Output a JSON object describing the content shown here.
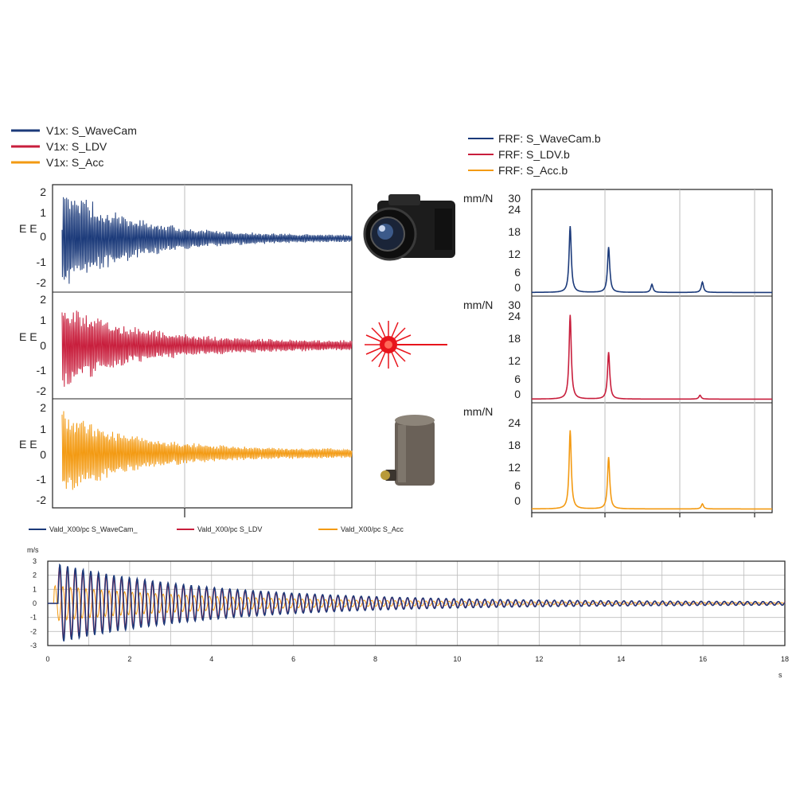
{
  "colors": {
    "wavecam": "#1b3a7a",
    "ldv": "#c81e3c",
    "acc": "#f39a12",
    "grid": "#bdbdbd",
    "axis": "#222222",
    "laser": "#e8141c"
  },
  "icons": [
    "camera-icon",
    "laser-icon",
    "accelerometer-icon"
  ],
  "chart_data": [
    {
      "type": "line",
      "panel": "time-signals",
      "legend": [
        "V1x: S_WaveCam",
        "V1x: S_LDV",
        "V1x: S_Acc"
      ],
      "legend_placement": "top-left",
      "grid": true,
      "subplots": [
        {
          "series_name": "V1x: S_WaveCam",
          "ylabel": "E E",
          "yticks": [
            "2",
            "1",
            "0",
            "-1",
            "-2"
          ],
          "ylim": [
            -2.3,
            2.3
          ],
          "decay_envelope": {
            "start": 2.4,
            "end": 0.12
          }
        },
        {
          "series_name": "V1x: S_LDV",
          "ylabel": "E E",
          "yticks": [
            "2",
            "1",
            "0",
            "-1",
            "-2"
          ],
          "ylim": [
            -2.3,
            2.3
          ],
          "decay_envelope": {
            "start": 2.0,
            "end": 0.2
          }
        },
        {
          "series_name": "V1x: S_Acc",
          "ylabel": "E E",
          "yticks": [
            "2",
            "1",
            "0",
            "-1",
            "-2"
          ],
          "ylim": [
            -2.3,
            2.3
          ],
          "decay_envelope": {
            "start": 1.9,
            "end": 0.18
          }
        }
      ]
    },
    {
      "type": "line",
      "panel": "frf",
      "legend": [
        "FRF: S_WaveCam.b",
        "FRF: S_LDV.b",
        "FRF: S_Acc.b"
      ],
      "legend_placement": "top-left",
      "grid": true,
      "ylabel": "mm/N",
      "yticks": [
        "30",
        "24",
        "18",
        "12",
        "6",
        "0"
      ],
      "ylim": [
        0,
        30
      ],
      "xlim": [
        0,
        100
      ],
      "subplots": [
        {
          "series_name": "FRF: S_WaveCam.b",
          "peaks": [
            {
              "x": 16,
              "y": 20.5
            },
            {
              "x": 32,
              "y": 14
            },
            {
              "x": 50,
              "y": 2.5
            },
            {
              "x": 71,
              "y": 3.2
            }
          ]
        },
        {
          "series_name": "FRF: S_LDV.b",
          "peaks": [
            {
              "x": 16,
              "y": 26
            },
            {
              "x": 32,
              "y": 14.5
            },
            {
              "x": 70,
              "y": 1.2
            }
          ]
        },
        {
          "series_name": "FRF: S_Acc.b",
          "peaks": [
            {
              "x": 16,
              "y": 23.5
            },
            {
              "x": 32,
              "y": 15.5
            },
            {
              "x": 71,
              "y": 1.5
            }
          ]
        }
      ]
    },
    {
      "type": "line",
      "panel": "overlay",
      "legend": [
        "Vald_X00/pc S_WaveCam_",
        "Vald_X00/pc S_LDV",
        "Vald_X00/pc S_Acc"
      ],
      "legend_placement": "top",
      "grid": true,
      "ylabel": "m/s",
      "yticks": [
        "3",
        "2",
        "1",
        "0",
        "-1",
        "-2",
        "-3"
      ],
      "ylim": [
        -3,
        3
      ],
      "xticks": [
        "0",
        "2",
        "4",
        "6",
        "8",
        "10",
        "12",
        "14",
        "16",
        "18"
      ],
      "xlim": [
        0,
        18
      ],
      "xlabel": "s",
      "decay_envelope": {
        "start": 2.8,
        "end": 0.1
      }
    }
  ]
}
